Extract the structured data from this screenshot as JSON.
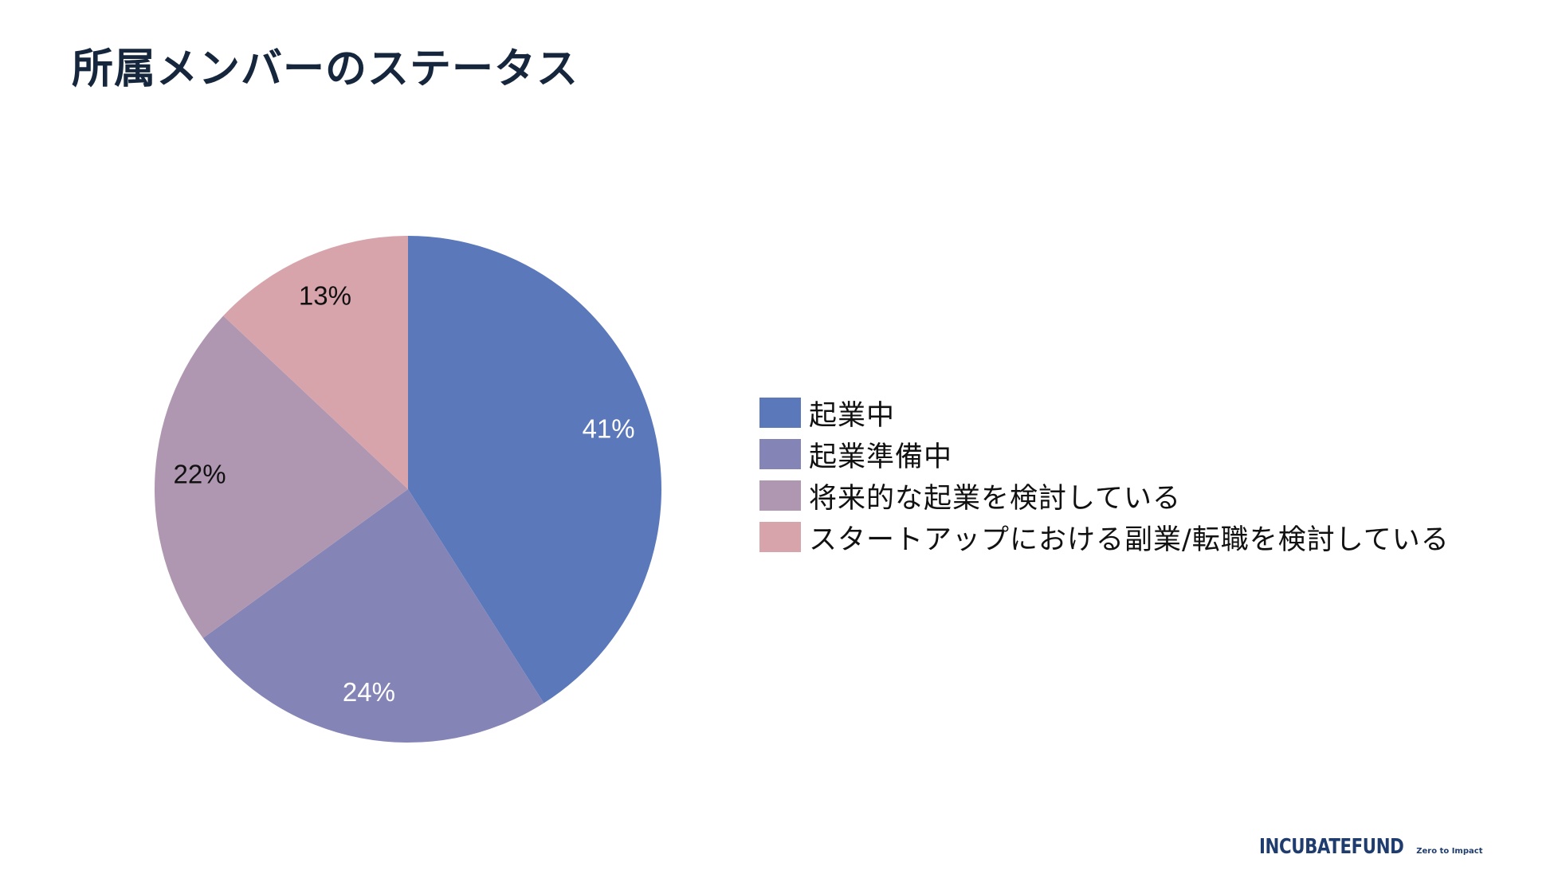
{
  "slide": {
    "title": "所属メンバーのステータス"
  },
  "chart_data": {
    "type": "pie",
    "title": "",
    "categories": [
      "起業中",
      "起業準備中",
      "将来的な起業を検討している",
      "スタートアップにおける副業/転職を検討している"
    ],
    "values": [
      41,
      24,
      22,
      13
    ],
    "value_labels": [
      "41%",
      "24%",
      "22%",
      "13%"
    ],
    "colors": [
      "#5b78bb",
      "#8584b6",
      "#af97b1",
      "#d8a4ab"
    ],
    "label_colors": [
      "#ffffff",
      "#ffffff",
      "#111111",
      "#111111"
    ],
    "start": "12 o'clock",
    "direction": "clockwise",
    "legend_position": "right"
  },
  "logo": {
    "text": "INCUBATEFUND",
    "tagline": "Zero to Impact",
    "color": "#1e3c6e"
  }
}
